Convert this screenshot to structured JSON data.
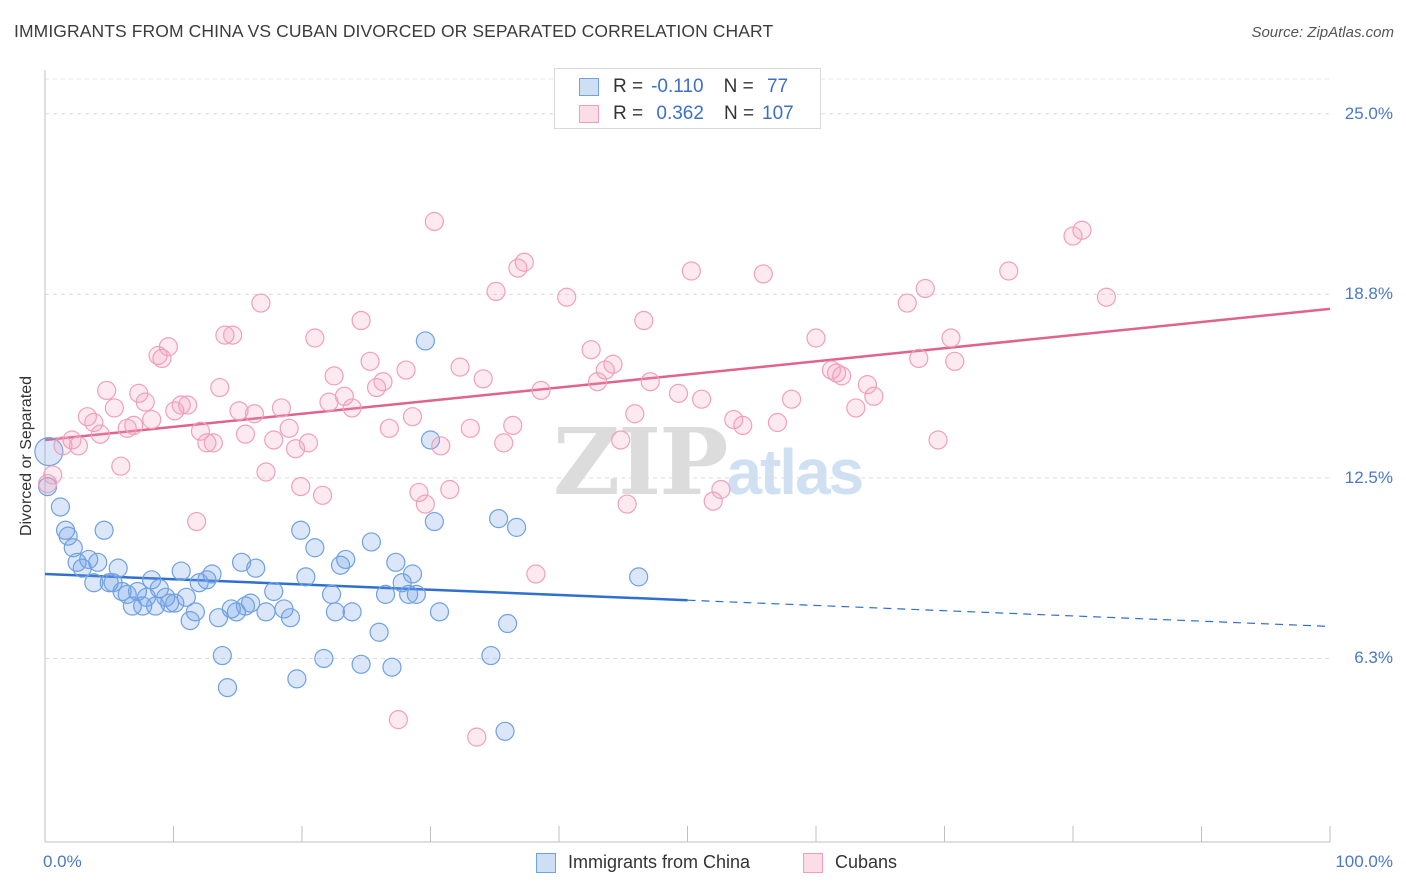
{
  "title": "IMMIGRANTS FROM CHINA VS CUBAN DIVORCED OR SEPARATED CORRELATION CHART",
  "source": "Source: ZipAtlas.com",
  "watermark": {
    "zip": "ZIP",
    "atlas": "atlas"
  },
  "legend_top": {
    "rows": [
      {
        "r_label": "R = ",
        "r_value": "-0.110",
        "n_label": "N = ",
        "n_value": " 77",
        "color": "#6fa1e3"
      },
      {
        "r_label": "R = ",
        "r_value": " 0.362",
        "n_label": "N = ",
        "n_value": "107",
        "color": "#f19fbb"
      }
    ]
  },
  "chart_data": {
    "type": "scatter",
    "title": "IMMIGRANTS FROM CHINA VS CUBAN DIVORCED OR SEPARATED CORRELATION CHART",
    "xlabel": "",
    "ylabel": "Divorced or Separated",
    "xlim": [
      0,
      100
    ],
    "ylim": [
      0,
      26.5
    ],
    "x_tick_labels": [
      "0.0%",
      "100.0%"
    ],
    "y_ticks": [
      6.3,
      12.5,
      18.8,
      25.0
    ],
    "y_tick_labels": [
      "6.3%",
      "12.5%",
      "18.8%",
      "25.0%"
    ],
    "grid": true,
    "legend_placement": "bottom-center",
    "series": [
      {
        "name": "Immigrants from China",
        "color": "#6fa1e3",
        "fill": "rgba(111,161,227,0.25)",
        "trend": {
          "x0": 0,
          "y0": 9.2,
          "x1": 50,
          "y1": 8.3,
          "dashed_to_x": 100,
          "dashed_to_y": 7.4,
          "color": "#2f6fcf"
        },
        "points": [
          [
            0.3,
            13.4
          ],
          [
            1.2,
            11.5
          ],
          [
            1.6,
            10.7
          ],
          [
            1.8,
            10.5
          ],
          [
            2.2,
            10.1
          ],
          [
            2.5,
            9.6
          ],
          [
            2.9,
            9.4
          ],
          [
            3.4,
            9.7
          ],
          [
            3.8,
            8.9
          ],
          [
            4.1,
            9.6
          ],
          [
            4.6,
            10.7
          ],
          [
            5.0,
            8.9
          ],
          [
            5.3,
            8.9
          ],
          [
            5.7,
            9.4
          ],
          [
            6.0,
            8.6
          ],
          [
            6.4,
            8.5
          ],
          [
            6.8,
            8.1
          ],
          [
            7.2,
            8.6
          ],
          [
            7.6,
            8.1
          ],
          [
            7.9,
            8.4
          ],
          [
            8.3,
            9.0
          ],
          [
            8.6,
            8.1
          ],
          [
            8.9,
            8.7
          ],
          [
            9.4,
            8.4
          ],
          [
            9.7,
            8.2
          ],
          [
            10.1,
            8.2
          ],
          [
            10.6,
            9.3
          ],
          [
            11.0,
            8.4
          ],
          [
            11.3,
            7.6
          ],
          [
            11.7,
            7.9
          ],
          [
            12.0,
            8.9
          ],
          [
            12.6,
            9.0
          ],
          [
            13.0,
            9.2
          ],
          [
            13.5,
            7.7
          ],
          [
            13.8,
            6.4
          ],
          [
            14.2,
            5.3
          ],
          [
            14.5,
            8.0
          ],
          [
            14.9,
            7.9
          ],
          [
            15.3,
            9.6
          ],
          [
            15.6,
            8.1
          ],
          [
            16.0,
            8.2
          ],
          [
            16.4,
            9.4
          ],
          [
            17.2,
            7.9
          ],
          [
            17.8,
            8.6
          ],
          [
            18.6,
            8.0
          ],
          [
            19.1,
            7.7
          ],
          [
            19.6,
            5.6
          ],
          [
            19.9,
            10.7
          ],
          [
            20.3,
            9.1
          ],
          [
            21.0,
            10.1
          ],
          [
            21.7,
            6.3
          ],
          [
            22.3,
            8.5
          ],
          [
            22.6,
            7.9
          ],
          [
            23.0,
            9.5
          ],
          [
            23.4,
            9.7
          ],
          [
            23.9,
            7.9
          ],
          [
            24.6,
            6.1
          ],
          [
            25.4,
            10.3
          ],
          [
            26.0,
            7.2
          ],
          [
            26.5,
            8.5
          ],
          [
            27.3,
            9.6
          ],
          [
            27.0,
            6.0
          ],
          [
            27.8,
            8.9
          ],
          [
            28.3,
            8.5
          ],
          [
            28.6,
            9.2
          ],
          [
            28.9,
            8.5
          ],
          [
            29.6,
            17.2
          ],
          [
            30.0,
            13.8
          ],
          [
            30.3,
            11.0
          ],
          [
            30.7,
            7.9
          ],
          [
            34.7,
            6.4
          ],
          [
            35.3,
            11.1
          ],
          [
            35.8,
            3.8
          ],
          [
            36.0,
            7.5
          ],
          [
            36.7,
            10.8
          ],
          [
            46.2,
            9.1
          ],
          [
            0.2,
            12.2
          ]
        ]
      },
      {
        "name": "Cubans",
        "color": "#f19fbb",
        "fill": "rgba(241,159,187,0.22)",
        "trend": {
          "x0": 0,
          "y0": 13.8,
          "x1": 100,
          "y1": 18.3,
          "color": "#e0638f"
        },
        "points": [
          [
            0.2,
            12.3
          ],
          [
            0.6,
            12.6
          ],
          [
            1.4,
            13.6
          ],
          [
            2.1,
            13.8
          ],
          [
            2.6,
            13.6
          ],
          [
            3.3,
            14.6
          ],
          [
            3.8,
            14.4
          ],
          [
            4.3,
            14.0
          ],
          [
            4.8,
            15.5
          ],
          [
            5.4,
            14.9
          ],
          [
            5.9,
            12.9
          ],
          [
            6.4,
            14.2
          ],
          [
            6.9,
            14.3
          ],
          [
            7.3,
            15.4
          ],
          [
            7.8,
            15.1
          ],
          [
            8.3,
            14.5
          ],
          [
            8.8,
            16.7
          ],
          [
            9.1,
            16.6
          ],
          [
            9.6,
            17.0
          ],
          [
            10.1,
            14.8
          ],
          [
            10.6,
            15.0
          ],
          [
            11.1,
            15.0
          ],
          [
            11.8,
            11.0
          ],
          [
            12.1,
            14.1
          ],
          [
            12.6,
            13.7
          ],
          [
            13.1,
            13.7
          ],
          [
            13.6,
            15.6
          ],
          [
            14.0,
            17.4
          ],
          [
            14.6,
            17.4
          ],
          [
            15.1,
            14.8
          ],
          [
            15.6,
            14.0
          ],
          [
            16.3,
            14.7
          ],
          [
            16.8,
            18.5
          ],
          [
            17.2,
            12.7
          ],
          [
            17.8,
            13.8
          ],
          [
            18.4,
            14.9
          ],
          [
            19.0,
            14.2
          ],
          [
            19.5,
            13.5
          ],
          [
            19.9,
            12.2
          ],
          [
            20.5,
            13.7
          ],
          [
            21.0,
            17.3
          ],
          [
            21.6,
            11.9
          ],
          [
            22.1,
            15.1
          ],
          [
            22.5,
            16.0
          ],
          [
            23.3,
            15.3
          ],
          [
            23.9,
            14.9
          ],
          [
            24.6,
            17.9
          ],
          [
            25.3,
            16.5
          ],
          [
            25.8,
            15.6
          ],
          [
            26.3,
            15.8
          ],
          [
            26.8,
            14.2
          ],
          [
            27.5,
            4.2
          ],
          [
            28.1,
            16.2
          ],
          [
            28.6,
            14.6
          ],
          [
            29.1,
            12.0
          ],
          [
            29.6,
            11.6
          ],
          [
            30.3,
            21.3
          ],
          [
            30.8,
            13.6
          ],
          [
            31.5,
            12.1
          ],
          [
            32.3,
            16.3
          ],
          [
            33.1,
            14.2
          ],
          [
            33.6,
            3.6
          ],
          [
            34.1,
            15.9
          ],
          [
            35.1,
            18.9
          ],
          [
            35.7,
            13.7
          ],
          [
            36.4,
            14.3
          ],
          [
            36.8,
            19.7
          ],
          [
            37.3,
            19.9
          ],
          [
            38.2,
            9.2
          ],
          [
            38.6,
            15.5
          ],
          [
            40.6,
            18.7
          ],
          [
            42.5,
            16.9
          ],
          [
            43.0,
            15.8
          ],
          [
            43.6,
            16.2
          ],
          [
            44.2,
            16.4
          ],
          [
            44.8,
            13.8
          ],
          [
            45.3,
            11.6
          ],
          [
            45.9,
            14.7
          ],
          [
            46.6,
            17.9
          ],
          [
            47.1,
            15.8
          ],
          [
            49.3,
            15.4
          ],
          [
            50.3,
            19.6
          ],
          [
            51.1,
            15.2
          ],
          [
            52.0,
            11.7
          ],
          [
            52.6,
            12.1
          ],
          [
            53.6,
            14.5
          ],
          [
            54.3,
            14.3
          ],
          [
            55.9,
            19.5
          ],
          [
            57.0,
            14.4
          ],
          [
            58.1,
            15.2
          ],
          [
            60.0,
            17.3
          ],
          [
            61.2,
            16.2
          ],
          [
            61.6,
            16.1
          ],
          [
            62.0,
            16.0
          ],
          [
            63.1,
            14.9
          ],
          [
            64.0,
            15.7
          ],
          [
            64.5,
            15.3
          ],
          [
            67.1,
            18.5
          ],
          [
            68.0,
            16.6
          ],
          [
            68.5,
            19.0
          ],
          [
            69.5,
            13.8
          ],
          [
            70.8,
            16.5
          ],
          [
            70.5,
            17.3
          ],
          [
            75.0,
            19.6
          ],
          [
            80.0,
            20.8
          ],
          [
            80.7,
            21.0
          ],
          [
            82.6,
            18.7
          ]
        ]
      }
    ]
  }
}
